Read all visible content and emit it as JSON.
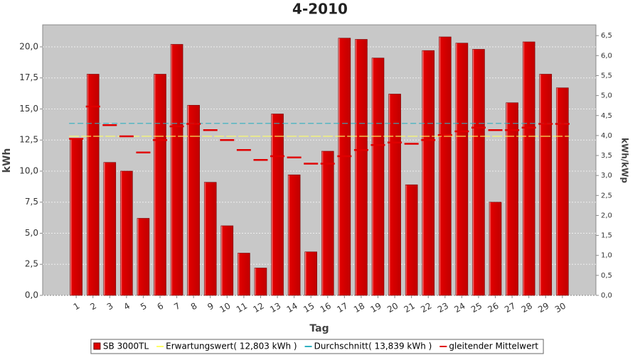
{
  "chart_data": {
    "type": "bar",
    "title": "4-2010",
    "x_label": "Tag",
    "y_label": "kWh",
    "y2_label": "kWh/kWp",
    "categories": [
      "1",
      "2",
      "3",
      "4",
      "5",
      "6",
      "7",
      "8",
      "9",
      "10",
      "11",
      "12",
      "13",
      "14",
      "15",
      "16",
      "17",
      "18",
      "19",
      "20",
      "21",
      "22",
      "23",
      "24",
      "25",
      "26",
      "27",
      "28",
      "29",
      "30"
    ],
    "series": [
      {
        "name": "SB 3000TL",
        "color": "#e00000",
        "values": [
          12.6,
          17.8,
          10.7,
          10.0,
          6.2,
          17.8,
          20.2,
          15.3,
          9.1,
          5.6,
          3.4,
          2.2,
          14.6,
          9.7,
          3.5,
          11.6,
          20.7,
          20.6,
          19.1,
          16.2,
          8.9,
          19.7,
          20.8,
          20.3,
          19.8,
          7.5,
          15.5,
          20.4,
          17.8,
          16.7
        ]
      }
    ],
    "reference_lines": [
      {
        "name": "Erwartungswert( 12,803 kWh )",
        "color": "#ffff66",
        "value": 12.803
      },
      {
        "name": "Durchschnitt( 13,839 kWh )",
        "color": "#30b0c0",
        "value": 13.839
      }
    ],
    "moving_average": {
      "name": "gleitender Mittelwert",
      "color": "#e00000",
      "values": [
        12.6,
        15.2,
        13.7,
        12.8,
        11.5,
        12.5,
        13.6,
        13.8,
        13.3,
        12.5,
        11.7,
        10.9,
        11.2,
        11.1,
        10.6,
        10.6,
        11.2,
        11.7,
        12.1,
        12.3,
        12.2,
        12.5,
        12.9,
        13.2,
        13.5,
        13.3,
        13.3,
        13.5,
        13.8,
        13.8
      ]
    },
    "ylim": [
      0,
      21.77
    ],
    "yticks": [
      {
        "value": 0,
        "label": "0,0"
      },
      {
        "value": 2.5,
        "label": "2,5"
      },
      {
        "value": 5,
        "label": "5,0"
      },
      {
        "value": 7.5,
        "label": "7,5"
      },
      {
        "value": 10,
        "label": "10,0"
      },
      {
        "value": 12.5,
        "label": "12,5"
      },
      {
        "value": 15,
        "label": "15,0"
      },
      {
        "value": 17.5,
        "label": "17,5"
      },
      {
        "value": 20,
        "label": "20,0"
      }
    ],
    "y2lim": [
      0,
      6.77
    ],
    "y2ticks": [
      {
        "value": 0,
        "label": "0,0"
      },
      {
        "value": 0.5,
        "label": "0,5"
      },
      {
        "value": 1,
        "label": "1,0"
      },
      {
        "value": 1.5,
        "label": "1,5"
      },
      {
        "value": 2,
        "label": "2,0"
      },
      {
        "value": 2.5,
        "label": "2,5"
      },
      {
        "value": 3,
        "label": "3,0"
      },
      {
        "value": 3.5,
        "label": "3,5"
      },
      {
        "value": 4,
        "label": "4,0"
      },
      {
        "value": 4.5,
        "label": "4,5"
      },
      {
        "value": 5,
        "label": "5,0"
      },
      {
        "value": 5.5,
        "label": "5,5"
      },
      {
        "value": 6,
        "label": "6,0"
      },
      {
        "value": 6.5,
        "label": "6,5"
      }
    ],
    "grid": true
  }
}
